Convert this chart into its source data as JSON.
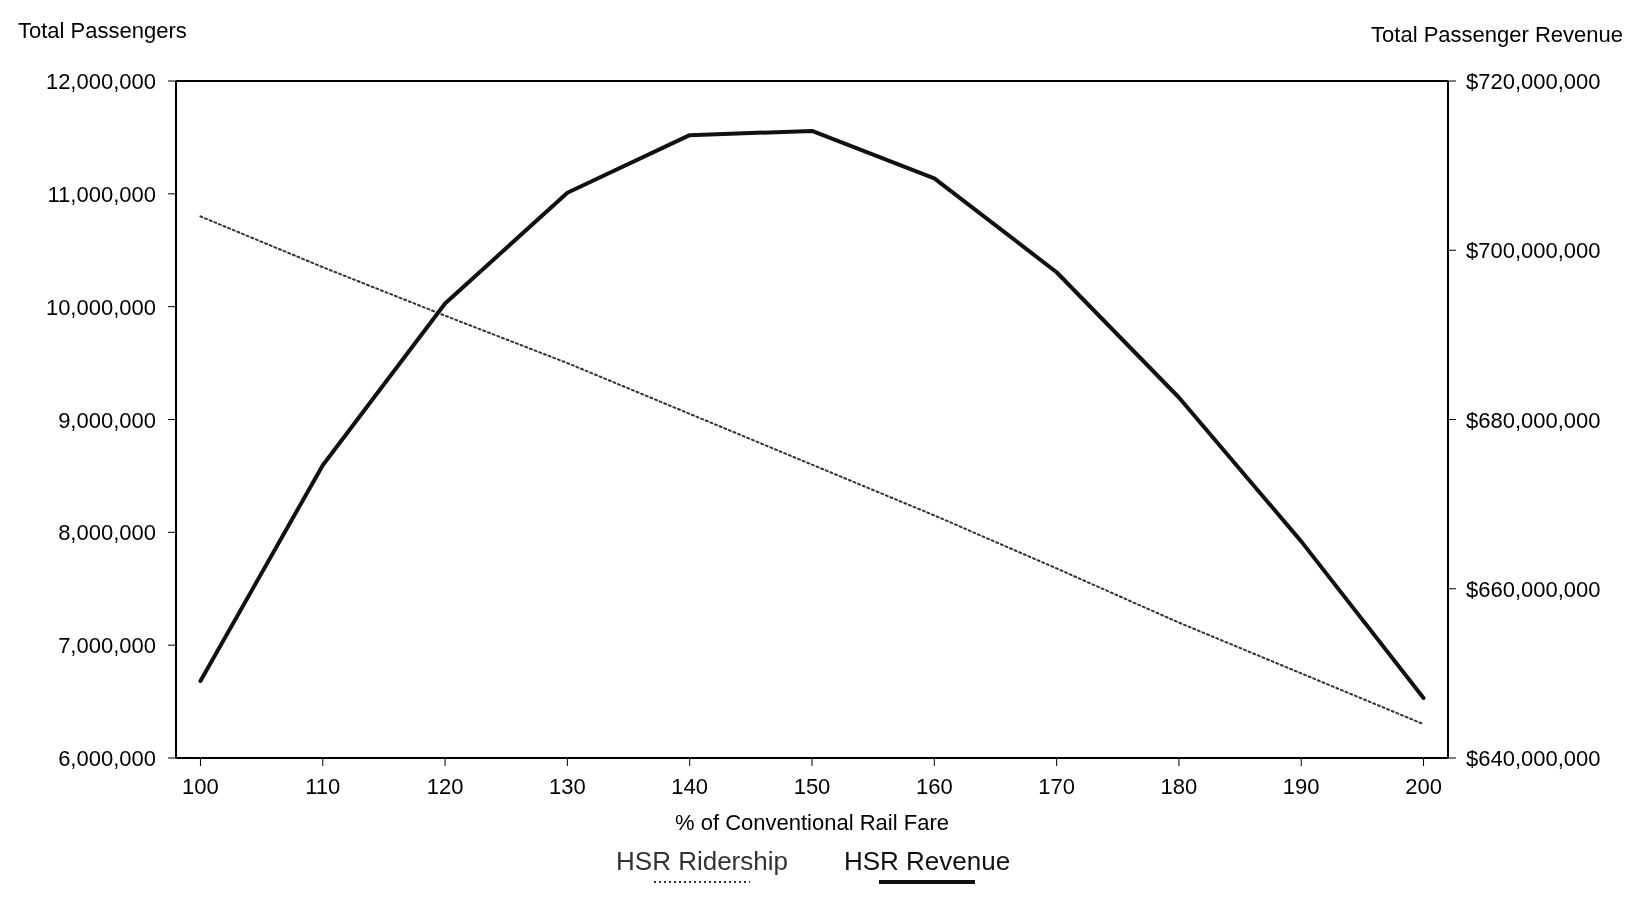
{
  "chart_data": {
    "type": "line",
    "xlabel": "% of Conventional Rail Fare",
    "ylabel": "Total Passengers",
    "y2label": "Total Passenger Revenue",
    "x": [
      100,
      110,
      120,
      130,
      140,
      150,
      160,
      170,
      180,
      190,
      200
    ],
    "xlim": [
      98,
      202
    ],
    "xticks": [
      100,
      110,
      120,
      130,
      140,
      150,
      160,
      170,
      180,
      190,
      200
    ],
    "ylim": [
      6000000,
      12000000
    ],
    "yticks": [
      {
        "value": 6000000,
        "label": "6,000,000"
      },
      {
        "value": 7000000,
        "label": "7,000,000"
      },
      {
        "value": 8000000,
        "label": "8,000,000"
      },
      {
        "value": 9000000,
        "label": "9,000,000"
      },
      {
        "value": 10000000,
        "label": "10,000,000"
      },
      {
        "value": 11000000,
        "label": "11,000,000"
      },
      {
        "value": 12000000,
        "label": "12,000,000"
      }
    ],
    "y2lim": [
      640000000,
      720000000
    ],
    "y2ticks": [
      {
        "value": 640000000,
        "label": "$640,000,000"
      },
      {
        "value": 660000000,
        "label": "$660,000,000"
      },
      {
        "value": 680000000,
        "label": "$680,000,000"
      },
      {
        "value": 700000000,
        "label": "$700,000,000"
      },
      {
        "value": 720000000,
        "label": "$720,000,000"
      }
    ],
    "legend": "bottom",
    "series": [
      {
        "name": "HSR Ridership",
        "color": "#333333",
        "line_style": "dotted",
        "values": [
          10800000,
          10350000,
          9920000,
          9500000,
          9050000,
          8600000,
          8150000,
          7680000,
          7200000,
          6750000,
          6300000
        ]
      },
      {
        "name": "HSR Revenue",
        "color": "#111111",
        "line_style": "solid",
        "axis": "y2",
        "values": [
          649100000,
          674600000,
          693700000,
          706800000,
          713600000,
          714100000,
          708500000,
          697400000,
          682600000,
          665600000,
          647100000
        ]
      }
    ]
  }
}
